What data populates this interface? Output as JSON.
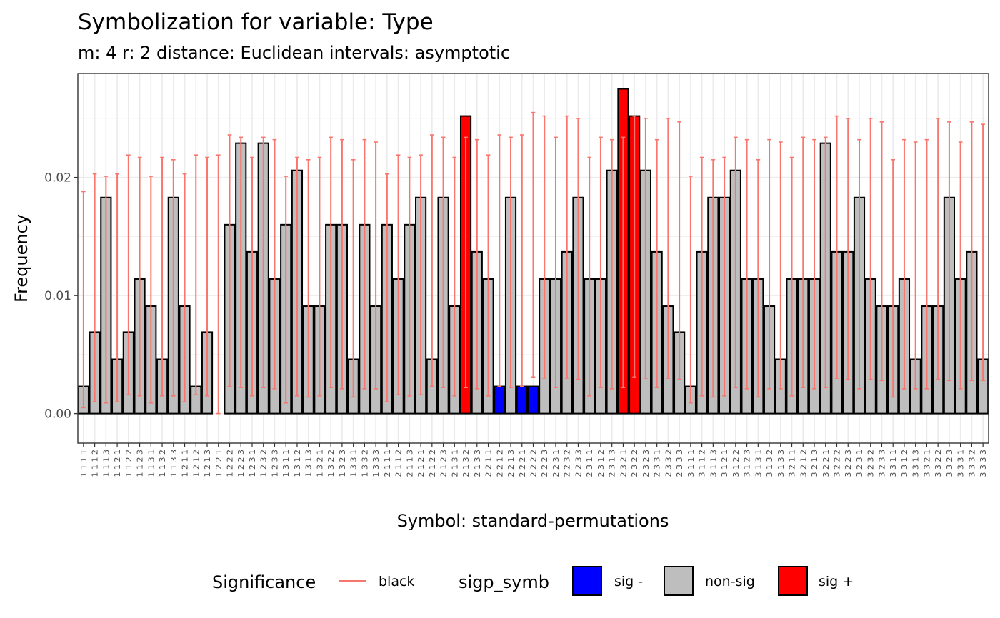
{
  "chart_data": {
    "type": "bar",
    "title": "Symbolization for variable: Type",
    "subtitle": "m: 4  r:  2  distance:  Euclidean  intervals:  asymptotic",
    "xlabel": "Symbol: standard-permutations",
    "ylabel": "Frequency",
    "ylim": [
      -0.0025,
      0.0288
    ],
    "yticks": [
      0.0,
      0.01,
      0.02
    ],
    "ytick_labels": [
      "0.00",
      "0.01",
      "0.02"
    ],
    "grid": true,
    "legend_position": "bottom",
    "categories": [
      "1 1 1 1",
      "1 1 1 2",
      "1 1 1 3",
      "1 1 2 1",
      "1 1 2 2",
      "1 1 2 3",
      "1 1 3 1",
      "1 1 3 2",
      "1 1 3 3",
      "1 2 1 1",
      "1 2 1 2",
      "1 2 1 3",
      "1 2 2 1",
      "1 2 2 2",
      "1 2 2 3",
      "1 2 3 1",
      "1 2 3 2",
      "1 2 3 3",
      "1 3 1 1",
      "1 3 1 2",
      "1 3 1 3",
      "1 3 2 1",
      "1 3 2 2",
      "1 3 2 3",
      "1 3 3 1",
      "1 3 3 2",
      "1 3 3 3",
      "2 1 1 1",
      "2 1 1 2",
      "2 1 1 3",
      "2 1 2 1",
      "2 1 2 2",
      "2 1 2 3",
      "2 1 3 1",
      "2 1 3 2",
      "2 1 3 3",
      "2 2 1 1",
      "2 2 1 2",
      "2 2 1 3",
      "2 2 2 1",
      "2 2 2 2",
      "2 2 2 3",
      "2 2 3 1",
      "2 2 3 2",
      "2 2 3 3",
      "2 3 1 1",
      "2 3 1 2",
      "2 3 1 3",
      "2 3 2 1",
      "2 3 2 2",
      "2 3 2 3",
      "2 3 3 1",
      "2 3 3 2",
      "2 3 3 3",
      "3 1 1 1",
      "3 1 1 2",
      "3 1 1 3",
      "3 1 2 1",
      "3 1 2 2",
      "3 1 2 3",
      "3 1 3 1",
      "3 1 3 2",
      "3 1 3 3",
      "3 2 1 1",
      "3 2 1 2",
      "3 2 1 3",
      "3 2 2 1",
      "3 2 2 2",
      "3 2 2 3",
      "3 2 3 1",
      "3 2 3 2",
      "3 2 3 3",
      "3 3 1 1",
      "3 3 1 2",
      "3 3 1 3",
      "3 3 2 1",
      "3 3 2 2",
      "3 3 2 3",
      "3 3 3 1",
      "3 3 3 2",
      "3 3 3 3"
    ],
    "values": [
      0.0023,
      0.0069,
      0.0183,
      0.0046,
      0.0069,
      0.0114,
      0.0091,
      0.0046,
      0.0183,
      0.0091,
      0.0023,
      0.0069,
      0.0,
      0.016,
      0.0229,
      0.0137,
      0.0229,
      0.0114,
      0.016,
      0.0206,
      0.0091,
      0.0091,
      0.016,
      0.016,
      0.0046,
      0.016,
      0.0091,
      0.016,
      0.0114,
      0.016,
      0.0183,
      0.0046,
      0.0183,
      0.0091,
      0.0252,
      0.0137,
      0.0114,
      0.0023,
      0.0183,
      0.0023,
      0.0023,
      0.0114,
      0.0114,
      0.0137,
      0.0183,
      0.0114,
      0.0114,
      0.0206,
      0.0275,
      0.0252,
      0.0206,
      0.0137,
      0.0091,
      0.0069,
      0.0023,
      0.0137,
      0.0183,
      0.0183,
      0.0206,
      0.0114,
      0.0114,
      0.0091,
      0.0046,
      0.0114,
      0.0114,
      0.0114,
      0.0229,
      0.0137,
      0.0137,
      0.0183,
      0.0114,
      0.0091,
      0.0091,
      0.0114,
      0.0046,
      0.0091,
      0.0091,
      0.0183,
      0.0114,
      0.0137,
      0.0046
    ],
    "significance": [
      "non-sig",
      "non-sig",
      "non-sig",
      "non-sig",
      "non-sig",
      "non-sig",
      "non-sig",
      "non-sig",
      "non-sig",
      "non-sig",
      "non-sig",
      "non-sig",
      "non-sig",
      "non-sig",
      "non-sig",
      "non-sig",
      "non-sig",
      "non-sig",
      "non-sig",
      "non-sig",
      "non-sig",
      "non-sig",
      "non-sig",
      "non-sig",
      "non-sig",
      "non-sig",
      "non-sig",
      "non-sig",
      "non-sig",
      "non-sig",
      "non-sig",
      "non-sig",
      "non-sig",
      "non-sig",
      "sig +",
      "non-sig",
      "non-sig",
      "sig -",
      "non-sig",
      "sig -",
      "sig -",
      "non-sig",
      "non-sig",
      "non-sig",
      "non-sig",
      "non-sig",
      "non-sig",
      "non-sig",
      "sig +",
      "sig +",
      "non-sig",
      "non-sig",
      "non-sig",
      "non-sig",
      "non-sig",
      "non-sig",
      "non-sig",
      "non-sig",
      "non-sig",
      "non-sig",
      "non-sig",
      "non-sig",
      "non-sig",
      "non-sig",
      "non-sig",
      "non-sig",
      "non-sig",
      "non-sig",
      "non-sig",
      "non-sig",
      "non-sig",
      "non-sig",
      "non-sig",
      "non-sig",
      "non-sig",
      "non-sig",
      "non-sig",
      "non-sig",
      "non-sig",
      "non-sig",
      "non-sig"
    ],
    "ci_low": [
      0.0005,
      0.001,
      0.0009,
      0.001,
      0.0016,
      0.0015,
      0.0009,
      0.0015,
      0.0015,
      0.001,
      0.0016,
      0.0015,
      0.0,
      0.0023,
      0.0022,
      0.0015,
      0.0022,
      0.0021,
      0.0009,
      0.0015,
      0.0014,
      0.0015,
      0.0022,
      0.0021,
      0.0014,
      0.0021,
      0.0021,
      0.001,
      0.0016,
      0.0015,
      0.0016,
      0.0023,
      0.0022,
      0.0015,
      0.0022,
      0.0021,
      0.0015,
      0.0023,
      0.0022,
      0.0023,
      0.0031,
      0.003,
      0.0022,
      0.003,
      0.0029,
      0.0015,
      0.0022,
      0.0021,
      0.0022,
      0.0031,
      0.003,
      0.0022,
      0.003,
      0.0029,
      0.0009,
      0.0015,
      0.0014,
      0.0015,
      0.0022,
      0.0021,
      0.0014,
      0.0021,
      0.0021,
      0.0015,
      0.0022,
      0.0021,
      0.0022,
      0.003,
      0.0029,
      0.0021,
      0.0029,
      0.0028,
      0.0014,
      0.0021,
      0.0021,
      0.0021,
      0.0029,
      0.0028,
      0.0021,
      0.0028,
      0.0028
    ],
    "ci_high": [
      0.0188,
      0.0203,
      0.0201,
      0.0203,
      0.0219,
      0.0217,
      0.0201,
      0.0217,
      0.0215,
      0.0203,
      0.0219,
      0.0217,
      0.0219,
      0.0236,
      0.0234,
      0.0217,
      0.0234,
      0.0232,
      0.0201,
      0.0217,
      0.0215,
      0.0217,
      0.0234,
      0.0232,
      0.0215,
      0.0232,
      0.023,
      0.0203,
      0.0219,
      0.0217,
      0.0219,
      0.0236,
      0.0234,
      0.0217,
      0.0234,
      0.0232,
      0.0219,
      0.0236,
      0.0234,
      0.0236,
      0.0255,
      0.0252,
      0.0234,
      0.0252,
      0.025,
      0.0217,
      0.0234,
      0.0232,
      0.0234,
      0.0252,
      0.025,
      0.0232,
      0.025,
      0.0247,
      0.0201,
      0.0217,
      0.0215,
      0.0217,
      0.0234,
      0.0232,
      0.0215,
      0.0232,
      0.023,
      0.0217,
      0.0234,
      0.0232,
      0.0234,
      0.0252,
      0.025,
      0.0232,
      0.025,
      0.0247,
      0.0215,
      0.0232,
      0.023,
      0.0232,
      0.025,
      0.0247,
      0.023,
      0.0247,
      0.0245
    ],
    "legend": {
      "significance_title": "Significance",
      "significance_entry": "black",
      "sigp_title": "sigp_symb",
      "entries": [
        "sig -",
        "non-sig",
        "sig +"
      ]
    },
    "colors": {
      "sig -": "#0000ff",
      "non-sig": "#bebebe",
      "sig +": "#ff0000",
      "errorbar": "#f8766d",
      "grid": "#ebebeb",
      "panel_border": "#333333"
    }
  }
}
